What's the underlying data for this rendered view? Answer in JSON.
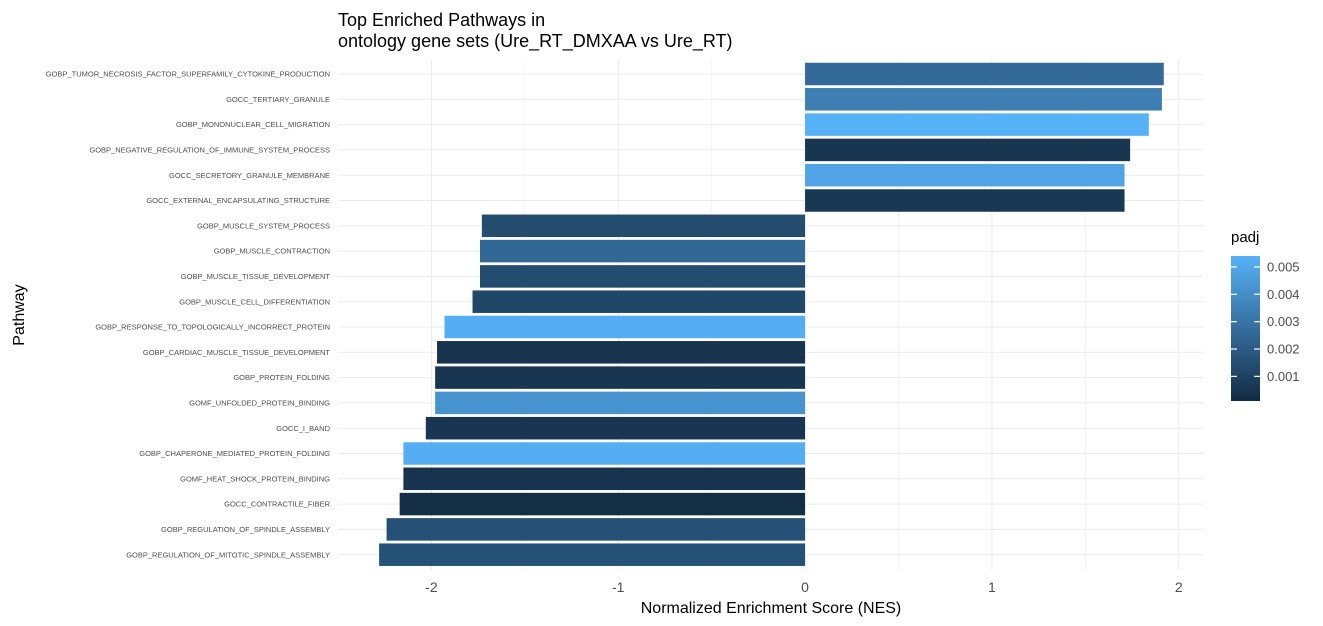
{
  "chart_data": {
    "type": "bar",
    "orientation": "horizontal",
    "title": "Top Enriched Pathways in",
    "subtitle": "ontology gene sets (Ure_RT_DMXAA vs Ure_RT)",
    "xlabel": "Normalized Enrichment Score (NES)",
    "ylabel": "Pathway",
    "xlim": [
      -2.5,
      2.13
    ],
    "xticks": [
      -2,
      -1,
      0,
      1,
      2
    ],
    "xtick_labels": [
      "-2",
      "-1",
      "0",
      "1",
      "2"
    ],
    "grid": true,
    "legend": {
      "title": "padj",
      "position": "right",
      "range": [
        0.0001,
        0.0054
      ],
      "ticks": [
        0.001,
        0.002,
        0.003,
        0.004,
        0.005
      ],
      "tick_labels": [
        "0.001",
        "0.002",
        "0.003",
        "0.004",
        "0.005"
      ],
      "colors": [
        "#132B43",
        "#56B1F7"
      ]
    },
    "bars": [
      {
        "pathway": "GOBP_TUMOR_NECROSIS_FACTOR_SUPERFAMILY_CYTOKINE_PRODUCTION",
        "nes": 1.92,
        "padj": 0.0026
      },
      {
        "pathway": "GOCC_TERTIARY_GRANULE",
        "nes": 1.91,
        "padj": 0.0034
      },
      {
        "pathway": "GOBP_MONONUCLEAR_CELL_MIGRATION",
        "nes": 1.84,
        "padj": 0.0054
      },
      {
        "pathway": "GOBP_NEGATIVE_REGULATION_OF_IMMUNE_SYSTEM_PROCESS",
        "nes": 1.74,
        "padj": 0.0005
      },
      {
        "pathway": "GOCC_SECRETORY_GRANULE_MEMBRANE",
        "nes": 1.71,
        "padj": 0.0049
      },
      {
        "pathway": "GOCC_EXTERNAL_ENCAPSULATING_STRUCTURE",
        "nes": 1.71,
        "padj": 0.0006
      },
      {
        "pathway": "GOBP_MUSCLE_SYSTEM_PROCESS",
        "nes": -1.73,
        "padj": 0.0014
      },
      {
        "pathway": "GOBP_MUSCLE_CONTRACTION",
        "nes": -1.74,
        "padj": 0.0025
      },
      {
        "pathway": "GOBP_MUSCLE_TISSUE_DEVELOPMENT",
        "nes": -1.74,
        "padj": 0.0014
      },
      {
        "pathway": "GOBP_MUSCLE_CELL_DIFFERENTIATION",
        "nes": -1.78,
        "padj": 0.0012
      },
      {
        "pathway": "GOBP_RESPONSE_TO_TOPOLOGICALLY_INCORRECT_PROTEIN",
        "nes": -1.93,
        "padj": 0.0053
      },
      {
        "pathway": "GOBP_CARDIAC_MUSCLE_TISSUE_DEVELOPMENT",
        "nes": -1.97,
        "padj": 0.0004
      },
      {
        "pathway": "GOBP_PROTEIN_FOLDING",
        "nes": -1.98,
        "padj": 0.0005
      },
      {
        "pathway": "GOMF_UNFOLDED_PROTEIN_BINDING",
        "nes": -1.98,
        "padj": 0.0042
      },
      {
        "pathway": "GOCC_I_BAND",
        "nes": -2.03,
        "padj": 0.0005
      },
      {
        "pathway": "GOBP_CHAPERONE_MEDIATED_PROTEIN_FOLDING",
        "nes": -2.15,
        "padj": 0.0053
      },
      {
        "pathway": "GOMF_HEAT_SHOCK_PROTEIN_BINDING",
        "nes": -2.15,
        "padj": 0.0004
      },
      {
        "pathway": "GOCC_CONTRACTILE_FIBER",
        "nes": -2.17,
        "padj": 0.0002
      },
      {
        "pathway": "GOBP_REGULATION_OF_SPINDLE_ASSEMBLY",
        "nes": -2.24,
        "padj": 0.0016
      },
      {
        "pathway": "GOBP_REGULATION_OF_MITOTIC_SPINDLE_ASSEMBLY",
        "nes": -2.28,
        "padj": 0.0016
      }
    ]
  }
}
